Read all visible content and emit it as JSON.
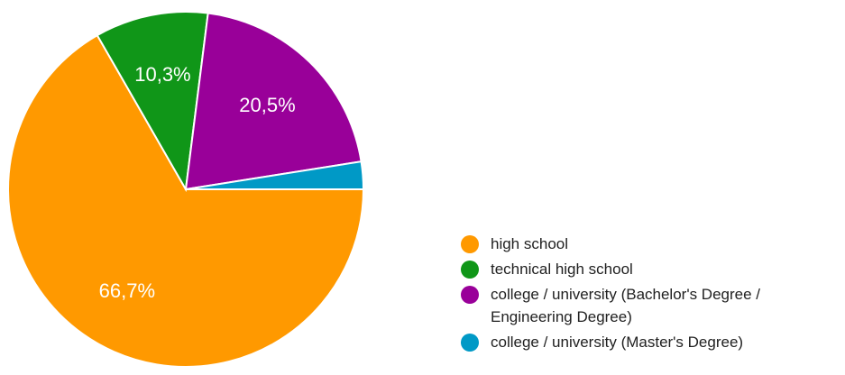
{
  "chart_data": {
    "type": "pie",
    "title": "",
    "slices": [
      {
        "label": "high school",
        "value": 66.7,
        "display": "66,7%",
        "color": "#ff9900",
        "show_label": true
      },
      {
        "label": "technical high school",
        "value": 10.3,
        "display": "10,3%",
        "color": "#109618",
        "show_label": true
      },
      {
        "label": "college / university (Bachelor's Degree / Engineering Degree)",
        "value": 20.5,
        "display": "20,5%",
        "color": "#990099",
        "show_label": true
      },
      {
        "label": "college / university (Master's Degree)",
        "value": 2.5,
        "display": "",
        "color": "#0099c6",
        "show_label": false
      }
    ],
    "legend_position": "right",
    "start": "3 o'clock, clockwise"
  }
}
